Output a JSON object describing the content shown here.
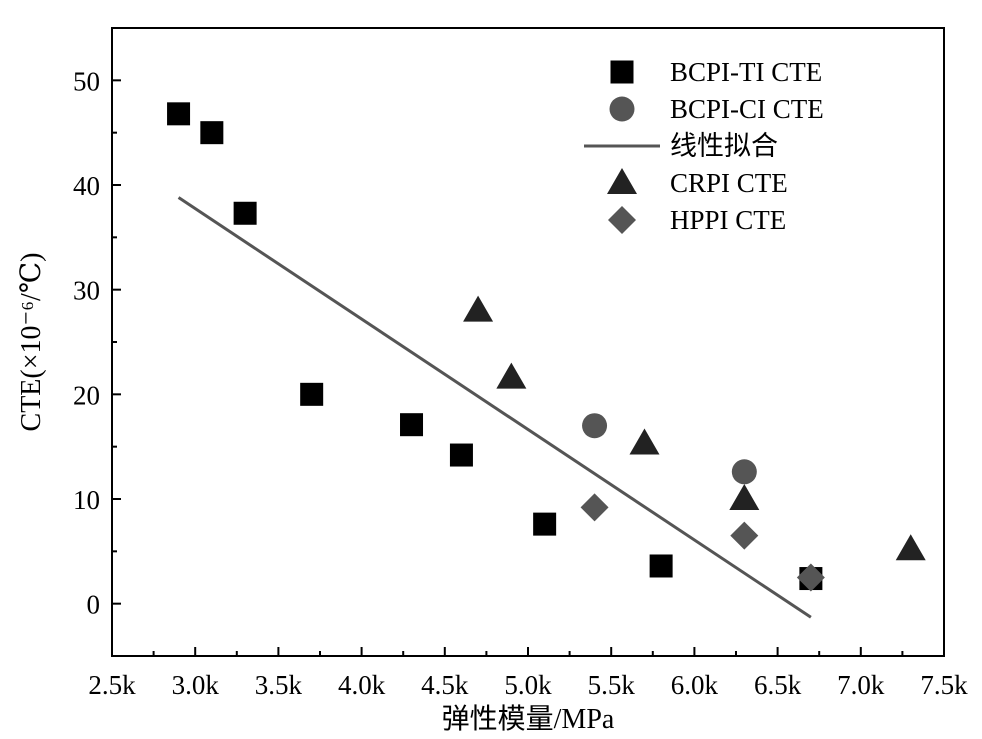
{
  "chart_data": {
    "type": "scatter",
    "title": "",
    "xlabel": "弹性模量/MPa",
    "ylabel": "CTE(×10⁻⁶/℃)",
    "xlim": [
      2500,
      7500
    ],
    "ylim": [
      -5,
      55
    ],
    "x_ticks": [
      2500,
      3000,
      3500,
      4000,
      4500,
      5000,
      5500,
      6000,
      6500,
      7000,
      7500
    ],
    "x_tick_labels": [
      "2.5k",
      "3.0k",
      "3.5k",
      "4.0k",
      "4.5k",
      "5.0k",
      "5.5k",
      "6.0k",
      "6.5k",
      "7.0k",
      "7.5k"
    ],
    "y_ticks": [
      0,
      10,
      20,
      30,
      40,
      50
    ],
    "y_tick_labels": [
      "0",
      "10",
      "20",
      "30",
      "40",
      "50"
    ],
    "grid": false,
    "legend_position": "top-right",
    "series": [
      {
        "name": "BCPI-TI CTE",
        "marker": "square",
        "color": "#000000",
        "points": [
          [
            2900,
            46.8
          ],
          [
            3100,
            45.0
          ],
          [
            3300,
            37.3
          ],
          [
            3700,
            20.0
          ],
          [
            4300,
            17.1
          ],
          [
            4600,
            14.2
          ],
          [
            5100,
            7.6
          ],
          [
            5800,
            3.6
          ],
          [
            6700,
            2.4
          ]
        ]
      },
      {
        "name": "BCPI-CI CTE",
        "marker": "circle",
        "color": "#555555",
        "points": [
          [
            5400,
            17.0
          ],
          [
            6300,
            12.6
          ]
        ]
      },
      {
        "name": "线性拟合",
        "marker": "line",
        "color": "#555555",
        "line": [
          [
            2900,
            38.8
          ],
          [
            6700,
            -1.3
          ]
        ]
      },
      {
        "name": "CRPI CTE",
        "marker": "triangle",
        "color": "#222222",
        "points": [
          [
            4700,
            28.0
          ],
          [
            4900,
            21.6
          ],
          [
            5700,
            15.3
          ],
          [
            6300,
            10.0
          ],
          [
            7300,
            5.2
          ]
        ]
      },
      {
        "name": "HPPI CTE",
        "marker": "diamond",
        "color": "#555555",
        "points": [
          [
            5400,
            9.2
          ],
          [
            6300,
            6.5
          ],
          [
            6700,
            2.5
          ]
        ]
      }
    ]
  }
}
